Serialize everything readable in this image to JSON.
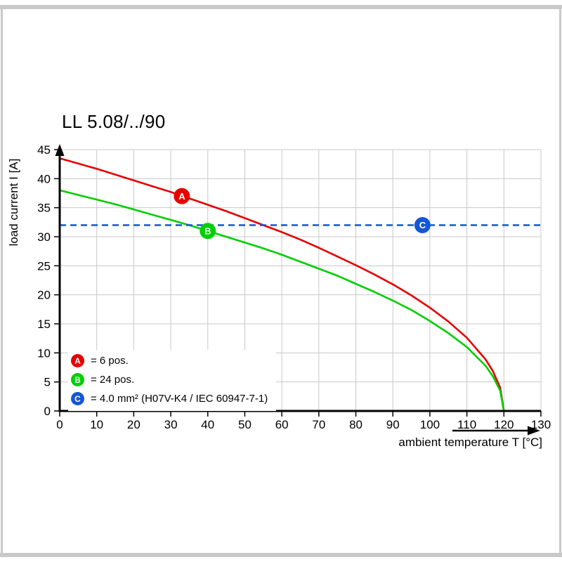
{
  "page": {
    "title": "LL 5.08/../90"
  },
  "chart_data": {
    "type": "line",
    "title": "LL 5.08/../90",
    "xlabel": "ambient temperature T [°C]",
    "ylabel": "load current I [A]",
    "xlim": [
      0,
      130
    ],
    "ylim": [
      0,
      45
    ],
    "x_ticks": [
      0,
      10,
      20,
      30,
      40,
      50,
      60,
      70,
      80,
      90,
      100,
      110,
      120,
      130
    ],
    "y_ticks": [
      0,
      5,
      10,
      15,
      20,
      25,
      30,
      35,
      40,
      45
    ],
    "grid": true,
    "colors": {
      "grid": "#c8c8c8",
      "axis": "#000000"
    },
    "series": [
      {
        "name": "A",
        "label": "= 6 pos.",
        "color": "#e60000",
        "kind": "curve",
        "x": [
          0,
          5,
          10,
          15,
          20,
          25,
          30,
          35,
          40,
          45,
          50,
          55,
          60,
          65,
          70,
          75,
          80,
          85,
          90,
          95,
          100,
          105,
          110,
          115,
          117,
          119,
          120
        ],
        "y": [
          43.5,
          42.6,
          41.7,
          40.7,
          39.7,
          38.7,
          37.7,
          36.6,
          35.5,
          34.4,
          33.2,
          32.0,
          30.8,
          29.5,
          28.1,
          26.6,
          25.1,
          23.5,
          21.8,
          19.9,
          17.8,
          15.4,
          12.6,
          8.9,
          6.9,
          4.0,
          0
        ],
        "marker": {
          "x": 33,
          "y": 37.0
        }
      },
      {
        "name": "B",
        "label": "= 24 pos.",
        "color": "#00cf00",
        "kind": "curve",
        "x": [
          0,
          5,
          10,
          15,
          20,
          25,
          30,
          35,
          40,
          45,
          50,
          55,
          60,
          65,
          70,
          75,
          80,
          85,
          90,
          95,
          100,
          105,
          110,
          115,
          117,
          119,
          120
        ],
        "y": [
          38.0,
          37.2,
          36.4,
          35.6,
          34.7,
          33.8,
          32.9,
          32.0,
          31.0,
          30.0,
          29.0,
          28.0,
          26.9,
          25.7,
          24.5,
          23.3,
          21.9,
          20.5,
          19.0,
          17.4,
          15.5,
          13.4,
          11.0,
          7.8,
          6.0,
          3.5,
          0
        ],
        "marker": {
          "x": 40,
          "y": 31.0
        }
      },
      {
        "name": "C",
        "label": "= 4.0 mm² (H07V-K4 / IEC 60947-7-1)",
        "color": "#1556d4",
        "kind": "dashed-hline",
        "value": 32,
        "marker": {
          "x": 98,
          "y": 32
        }
      }
    ]
  }
}
